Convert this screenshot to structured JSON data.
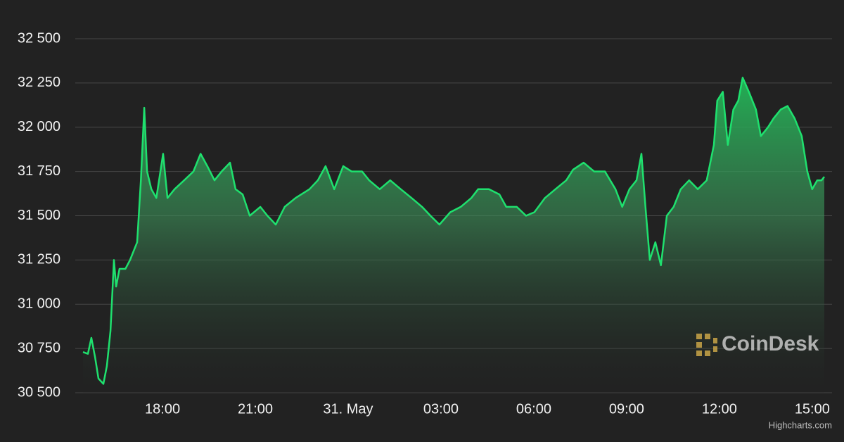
{
  "chart_data": {
    "type": "area",
    "x": [
      15.43,
      15.59,
      15.7,
      15.82,
      15.93,
      16.09,
      16.2,
      16.32,
      16.43,
      16.5,
      16.61,
      16.8,
      16.95,
      17.18,
      17.3,
      17.41,
      17.5,
      17.64,
      17.8,
      18.02,
      18.16,
      18.39,
      18.7,
      19.0,
      19.23,
      19.45,
      19.68,
      19.91,
      20.18,
      20.36,
      20.59,
      20.82,
      21.16,
      21.39,
      21.66,
      21.95,
      22.3,
      22.75,
      23.02,
      23.27,
      23.55,
      23.84,
      24.11,
      24.45,
      24.68,
      25.02,
      25.36,
      25.7,
      26.05,
      26.39,
      26.66,
      26.95,
      27.3,
      27.64,
      27.98,
      28.2,
      28.55,
      28.89,
      29.11,
      29.45,
      29.75,
      30.02,
      30.36,
      30.7,
      31.05,
      31.27,
      31.61,
      31.95,
      32.3,
      32.64,
      32.86,
      33.09,
      33.32,
      33.48,
      33.61,
      33.75,
      33.93,
      34.11,
      34.3,
      34.52,
      34.75,
      35.02,
      35.3,
      35.59,
      35.82,
      35.93,
      36.11,
      36.27,
      36.45,
      36.61,
      36.75,
      36.95,
      37.18,
      37.34,
      37.57,
      37.75,
      37.98,
      38.2,
      38.43,
      38.66,
      38.84,
      39.0,
      39.16,
      39.3,
      39.39
    ],
    "values": [
      30730,
      30720,
      30810,
      30700,
      30580,
      30550,
      30650,
      30850,
      31250,
      31100,
      31200,
      31200,
      31250,
      31350,
      31700,
      32110,
      31750,
      31650,
      31600,
      31850,
      31600,
      31650,
      31700,
      31750,
      31850,
      31780,
      31700,
      31750,
      31800,
      31650,
      31620,
      31500,
      31550,
      31500,
      31450,
      31550,
      31600,
      31650,
      31700,
      31780,
      31650,
      31780,
      31750,
      31750,
      31700,
      31650,
      31700,
      31650,
      31600,
      31550,
      31500,
      31450,
      31520,
      31550,
      31600,
      31650,
      31650,
      31620,
      31550,
      31550,
      31500,
      31520,
      31600,
      31650,
      31700,
      31760,
      31800,
      31750,
      31750,
      31650,
      31550,
      31650,
      31700,
      31850,
      31550,
      31250,
      31350,
      31220,
      31500,
      31550,
      31650,
      31700,
      31650,
      31700,
      31900,
      32150,
      32200,
      31900,
      32100,
      32150,
      32280,
      32200,
      32100,
      31950,
      32000,
      32050,
      32100,
      32120,
      32050,
      31950,
      31750,
      31650,
      31700,
      31700,
      31720
    ],
    "color": "#1fe06e",
    "xlim": [
      15.18,
      39.64
    ],
    "xticks": [
      {
        "value": 18,
        "label": "18:00"
      },
      {
        "value": 21,
        "label": "21:00"
      },
      {
        "value": 24,
        "label": "31. May"
      },
      {
        "value": 27,
        "label": "03:00"
      },
      {
        "value": 30,
        "label": "06:00"
      },
      {
        "value": 33,
        "label": "09:00"
      },
      {
        "value": 36,
        "label": "12:00"
      },
      {
        "value": 39,
        "label": "15:00"
      }
    ],
    "ylim": [
      30500,
      32500
    ],
    "yticks": [
      {
        "value": 30500,
        "label": "30 500"
      },
      {
        "value": 30750,
        "label": "30 750"
      },
      {
        "value": 31000,
        "label": "31 000"
      },
      {
        "value": 31250,
        "label": "31 250"
      },
      {
        "value": 31500,
        "label": "31 500"
      },
      {
        "value": 31750,
        "label": "31 750"
      },
      {
        "value": 32000,
        "label": "32 000"
      },
      {
        "value": 32250,
        "label": "32 250"
      },
      {
        "value": 32500,
        "label": "32 500"
      }
    ],
    "grid": true,
    "watermark": "CoinDesk",
    "credits": "Highcharts.com"
  }
}
